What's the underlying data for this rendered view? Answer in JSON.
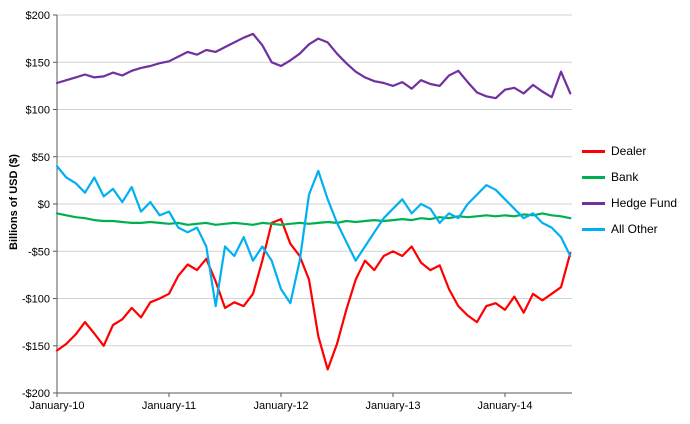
{
  "chart_data": {
    "type": "line",
    "title": "",
    "xlabel": "",
    "ylabel": "Billions of USD ($)",
    "ylim": [
      -200,
      200
    ],
    "y_tick_interval": 50,
    "y_tick_labels": [
      "$200",
      "$150",
      "$100",
      "$50",
      "$0",
      "-$50",
      "-$100",
      "-$150",
      "-$200"
    ],
    "x_tick_labels": [
      "January-10",
      "January-11",
      "January-12",
      "January-13",
      "January-14"
    ],
    "x_tick_month_positions": [
      0,
      12,
      24,
      36,
      48
    ],
    "x_range_note": "monthly points from January-2010 to August-2014",
    "grid": "horizontal",
    "legend_position": "right",
    "series": [
      {
        "name": "Dealer",
        "color": "#FF0000",
        "values": [
          -155,
          -148,
          -138,
          -125,
          -137,
          -150,
          -128,
          -122,
          -110,
          -120,
          -104,
          -100,
          -95,
          -76,
          -64,
          -70,
          -58,
          -82,
          -110,
          -104,
          -108,
          -95,
          -60,
          -20,
          -16,
          -42,
          -55,
          -80,
          -140,
          -175,
          -148,
          -112,
          -80,
          -60,
          -70,
          -55,
          -50,
          -55,
          -45,
          -62,
          -70,
          -65,
          -90,
          -108,
          -118,
          -125,
          -108,
          -105,
          -112,
          -98,
          -115,
          -95,
          -102,
          -95,
          -88,
          -52
        ]
      },
      {
        "name": "Bank",
        "color": "#00B050",
        "values": [
          -10,
          -12,
          -14,
          -15,
          -17,
          -18,
          -18,
          -19,
          -20,
          -20,
          -19,
          -20,
          -21,
          -20,
          -22,
          -21,
          -20,
          -22,
          -21,
          -20,
          -21,
          -22,
          -20,
          -21,
          -22,
          -21,
          -20,
          -21,
          -20,
          -19,
          -20,
          -18,
          -19,
          -18,
          -17,
          -18,
          -17,
          -16,
          -17,
          -15,
          -16,
          -14,
          -15,
          -13,
          -14,
          -13,
          -12,
          -13,
          -12,
          -13,
          -11,
          -12,
          -10,
          -12,
          -13,
          -15
        ]
      },
      {
        "name": "Hedge Fund",
        "color": "#7030A0",
        "values": [
          128,
          131,
          134,
          137,
          134,
          135,
          139,
          136,
          141,
          144,
          146,
          149,
          151,
          156,
          161,
          158,
          163,
          161,
          166,
          171,
          176,
          180,
          168,
          150,
          146,
          152,
          159,
          169,
          175,
          171,
          159,
          149,
          140,
          134,
          130,
          128,
          125,
          129,
          122,
          131,
          127,
          125,
          136,
          141,
          129,
          118,
          114,
          112,
          121,
          123,
          117,
          126,
          119,
          113,
          140,
          117
        ]
      },
      {
        "name": "All Other",
        "color": "#00B0F0",
        "values": [
          40,
          28,
          22,
          12,
          28,
          8,
          16,
          2,
          18,
          -8,
          2,
          -12,
          -8,
          -25,
          -30,
          -25,
          -45,
          -108,
          -45,
          -55,
          -35,
          -60,
          -45,
          -60,
          -90,
          -105,
          -60,
          10,
          35,
          5,
          -20,
          -40,
          -60,
          -45,
          -30,
          -15,
          -5,
          5,
          -10,
          0,
          -5,
          -20,
          -10,
          -15,
          0,
          10,
          20,
          15,
          5,
          -5,
          -15,
          -10,
          -20,
          -25,
          -35,
          -55
        ]
      }
    ]
  }
}
